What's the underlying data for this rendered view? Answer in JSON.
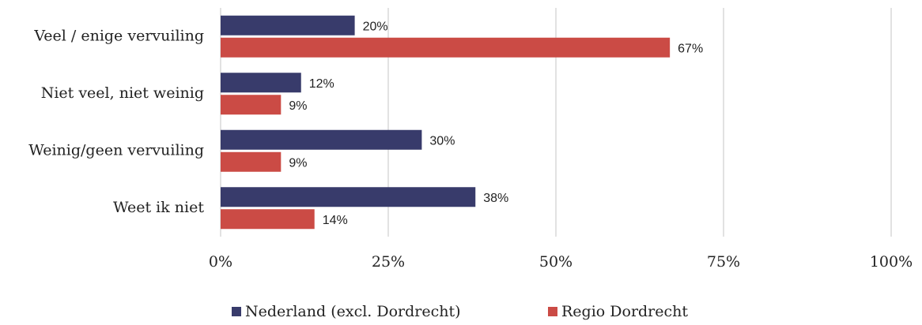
{
  "chart_data": {
    "type": "bar",
    "orientation": "horizontal",
    "categories": [
      "Veel / enige vervuiling",
      "Niet veel, niet weinig",
      "Weinig/geen vervuiling",
      "Weet ik niet"
    ],
    "series": [
      {
        "name": "Nederland (excl. Dordrecht)",
        "color": "#383b6b",
        "values": [
          20,
          12,
          30,
          38
        ],
        "value_labels": [
          "20%",
          "12%",
          "30%",
          "38%"
        ]
      },
      {
        "name": "Regio Dordrecht",
        "color": "#cb4b45",
        "values": [
          67,
          9,
          9,
          14
        ],
        "value_labels": [
          "67%",
          "9%",
          "9%",
          "14%"
        ]
      }
    ],
    "xlim": [
      0,
      100
    ],
    "xticks": [
      {
        "value": 0,
        "label": "0%"
      },
      {
        "value": 25,
        "label": "25%"
      },
      {
        "value": 50,
        "label": "50%"
      },
      {
        "value": 75,
        "label": "75%"
      },
      {
        "value": 100,
        "label": "100%"
      }
    ],
    "grid": true,
    "legend": "bottom"
  }
}
